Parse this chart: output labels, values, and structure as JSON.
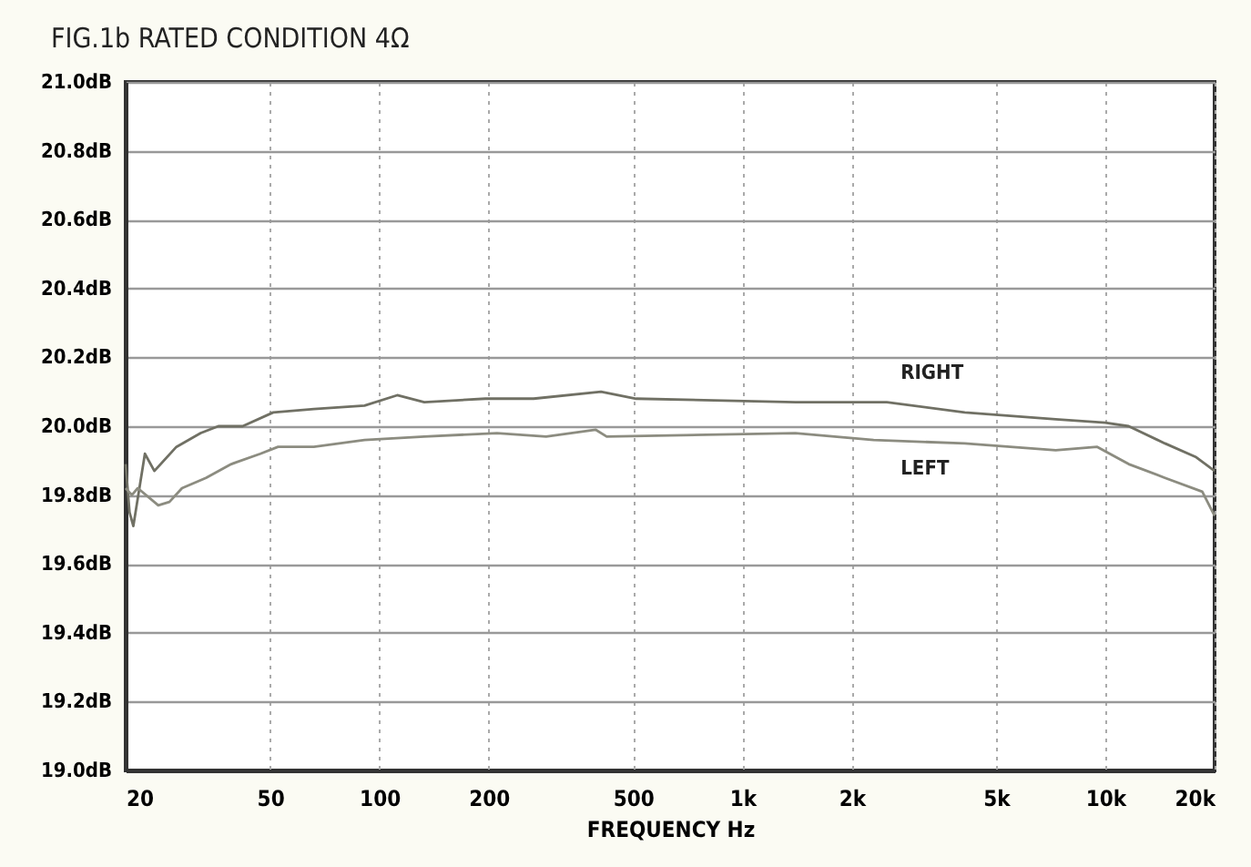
{
  "chart_data": {
    "type": "line",
    "title": "FIG.1b RATED CONDITION 4Ω",
    "xlabel": "FREQUENCY Hz",
    "log": "x",
    "grid": true,
    "legend": false,
    "marker": "none",
    "line_style": "solid",
    "xlim": [
      20,
      20000
    ],
    "xticks": [
      20,
      50,
      100,
      200,
      500,
      {
        "value": 1000,
        "label": "1k"
      },
      {
        "value": 2000,
        "label": "2k"
      },
      {
        "value": 5000,
        "label": "5k"
      },
      {
        "value": 10000,
        "label": "10k"
      },
      {
        "value": 20000,
        "label": "20k"
      }
    ],
    "ylim": [
      19.0,
      21.0
    ],
    "yticks": [
      {
        "value": 19.0,
        "label": "19.0dB"
      },
      {
        "value": 19.2,
        "label": "19.2dB"
      },
      {
        "value": 19.4,
        "label": "19.4dB"
      },
      {
        "value": 19.6,
        "label": "19.6dB"
      },
      {
        "value": 19.8,
        "label": "19.8dB"
      },
      {
        "value": 20.0,
        "label": "20.0dB"
      },
      {
        "value": 20.2,
        "label": "20.2dB"
      },
      {
        "value": 20.4,
        "label": "20.4dB"
      },
      {
        "value": 20.6,
        "label": "20.6dB"
      },
      {
        "value": 20.8,
        "label": "20.8dB"
      },
      {
        "value": 21.0,
        "label": "21.0dB"
      }
    ],
    "series": [
      {
        "name": "RIGHT",
        "color": "#707064",
        "x": [
          20,
          20.5,
          21,
          22.6,
          24,
          27.6,
          32.2,
          36,
          42,
          51,
          66,
          91,
          112,
          133,
          196,
          266,
          408,
          510,
          1400,
          2500,
          4100,
          7300,
          10000,
          11600,
          14600,
          17800,
          20000
        ],
        "values": [
          19.89,
          19.75,
          19.71,
          19.92,
          19.87,
          19.94,
          19.98,
          20.0,
          20.0,
          20.04,
          20.05,
          20.06,
          20.09,
          20.07,
          20.08,
          20.08,
          20.1,
          20.08,
          20.07,
          20.07,
          20.04,
          20.02,
          20.01,
          20.0,
          19.95,
          19.91,
          19.87
        ]
      },
      {
        "name": "LEFT",
        "color": "#8c8c80",
        "x": [
          20,
          20.8,
          21.6,
          24.6,
          26.4,
          28.6,
          33.3,
          39.1,
          47,
          52.6,
          66,
          91,
          133,
          211,
          288,
          394,
          423,
          1400,
          2300,
          4100,
          7300,
          9500,
          11600,
          14600,
          18500,
          20000
        ],
        "values": [
          19.82,
          19.8,
          19.82,
          19.77,
          19.78,
          19.82,
          19.85,
          19.89,
          19.92,
          19.94,
          19.94,
          19.96,
          19.97,
          19.98,
          19.97,
          19.99,
          19.97,
          19.98,
          19.96,
          19.95,
          19.93,
          19.94,
          19.89,
          19.85,
          19.81,
          19.74
        ]
      }
    ]
  }
}
